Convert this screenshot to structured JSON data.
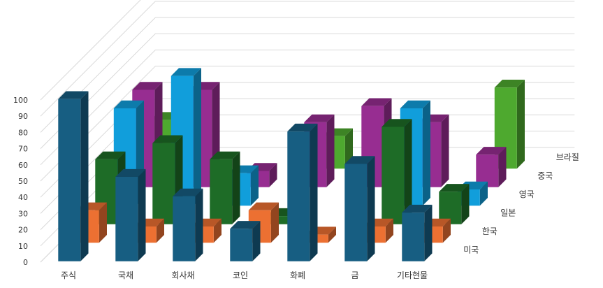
{
  "chart_data": {
    "type": "bar",
    "variant": "3d-column",
    "title": "",
    "xlabel": "",
    "ylabel": "",
    "ylim": [
      0,
      100
    ],
    "yticks": [
      0,
      10,
      20,
      30,
      40,
      50,
      60,
      70,
      80,
      90,
      100
    ],
    "grid": true,
    "legend": "none",
    "categories": [
      "주식",
      "국채",
      "회사채",
      "코인",
      "화폐",
      "금",
      "기타현물"
    ],
    "series": [
      {
        "name": "미국",
        "values": [
          100,
          52,
          40,
          20,
          80,
          60,
          30
        ],
        "color": "#175E82"
      },
      {
        "name": "한국",
        "values": [
          20,
          10,
          10,
          20,
          5,
          10,
          10
        ],
        "color": "#EC7032"
      },
      {
        "name": "일본",
        "values": [
          40,
          50,
          40,
          5,
          0,
          60,
          20
        ],
        "color": "#1E6C27"
      },
      {
        "name": "영국",
        "values": [
          60,
          80,
          20,
          0,
          0,
          60,
          10
        ],
        "color": "#119EDB"
      },
      {
        "name": "중국",
        "values": [
          60,
          60,
          10,
          40,
          50,
          40,
          20
        ],
        "color": "#972D91"
      },
      {
        "name": "브라질",
        "values": [
          30,
          0,
          0,
          20,
          0,
          0,
          50
        ],
        "color": "#4EA92F"
      }
    ]
  }
}
